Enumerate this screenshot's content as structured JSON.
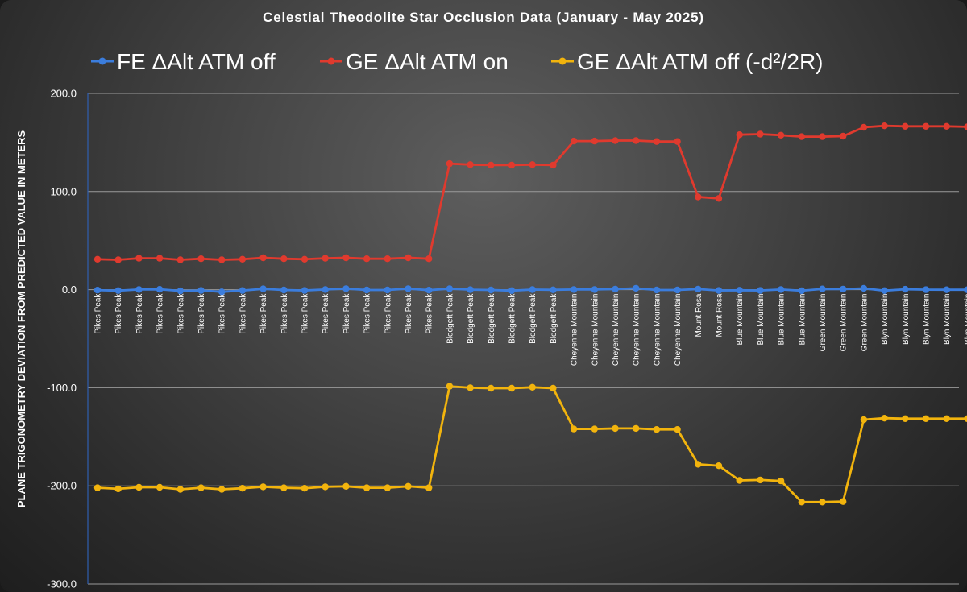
{
  "chart_data": {
    "type": "line",
    "title": "Celestial Theodolite Star Occlusion Data (January - May 2025)",
    "xlabel": "",
    "ylabel": "PLANE TRIGONOMETRY DEVIATION FROM PREDICTED VALUE IN METERS",
    "ylim": [
      -300,
      200
    ],
    "yticks": [
      200,
      100,
      0,
      -100,
      -200,
      -300
    ],
    "ytick_labels": [
      "200.0",
      "100.0",
      "0.0",
      "-100.0",
      "-200.0",
      "-300.0"
    ],
    "grid": true,
    "legend_position": "top",
    "categories": [
      "Pikes Peak",
      "Pikes Peak",
      "Pikes Peak",
      "Pikes Peak",
      "Pikes Peak",
      "Pikes Peak",
      "Pikes Peak",
      "Pikes Peak",
      "Pikes Peak",
      "Pikes Peak",
      "Pikes Peak",
      "Pikes Peak",
      "Pikes Peak",
      "Pikes Peak",
      "Pikes Peak",
      "Pikes Peak",
      "Pikes Peak",
      "Blodgett Peak",
      "Blodgett Peak",
      "Blodgett Peak",
      "Blodgett Peak",
      "Blodgett Peak",
      "Blodgett Peak",
      "Cheyenne Mountain",
      "Cheyenne Mountain",
      "Cheyenne Mountain",
      "Cheyenne Mountain",
      "Cheyenne Mountain",
      "Cheyenne Mountain",
      "Mount Rosa",
      "Mount Rosa",
      "Blue Mountain",
      "Blue Mountain",
      "Blue Mountain",
      "Blue Mountain",
      "Green Mountain",
      "Green Mountain",
      "Green Mountain",
      "Blyn Mountain",
      "Blyn Mountain",
      "Blyn Mountain",
      "Blyn Mountain",
      "Blyn Mountain"
    ],
    "series": [
      {
        "name": "FE ΔAlt ATM off",
        "color": "#3b7ddd",
        "values": [
          -0.5,
          -1,
          0.2,
          0.3,
          -1.2,
          -0.8,
          -2.2,
          -0.9,
          0.8,
          -0.3,
          -0.8,
          0.2,
          1,
          -0.3,
          -0.3,
          1,
          -0.5,
          1,
          0,
          -0.3,
          -1,
          0.1,
          -0.2,
          0.2,
          0.2,
          0.6,
          1.4,
          -0.3,
          -0.3,
          0.6,
          -0.8,
          -0.6,
          -0.8,
          0.2,
          -1.1,
          0.7,
          0.6,
          1.3,
          -1,
          0.4,
          0,
          -0.1,
          -0.1
        ]
      },
      {
        "name": "GE ΔAlt ATM on",
        "color": "#e03a2e",
        "values": [
          31,
          30.5,
          32,
          32,
          30.5,
          31.5,
          30.5,
          31,
          32.5,
          31.5,
          31,
          32,
          32.5,
          31.5,
          31.5,
          32.5,
          31.5,
          128.5,
          127.5,
          127,
          127,
          127.5,
          127,
          151.5,
          151.5,
          152,
          152,
          151,
          151,
          94.5,
          93,
          158,
          158.5,
          157.5,
          156,
          156,
          156.5,
          165.5,
          167,
          166.5,
          166.5,
          166.5,
          166
        ]
      },
      {
        "name": "GE ΔAlt ATM off (-d²/2R)",
        "color": "#f2b40d",
        "values": [
          -202,
          -203,
          -201.5,
          -201.5,
          -203.5,
          -202,
          -203.5,
          -202.5,
          -201,
          -202,
          -202.5,
          -201,
          -200.5,
          -202,
          -202,
          -200.5,
          -202,
          -98.5,
          -100,
          -100.5,
          -100.5,
          -99.5,
          -100.5,
          -142,
          -142,
          -141.5,
          -141.5,
          -142.5,
          -142.5,
          -178,
          -179.5,
          -194.5,
          -194,
          -195,
          -216.5,
          -216.5,
          -216,
          -132.5,
          -131,
          -131.5,
          -131.5,
          -131.5,
          -131.5
        ]
      }
    ]
  }
}
